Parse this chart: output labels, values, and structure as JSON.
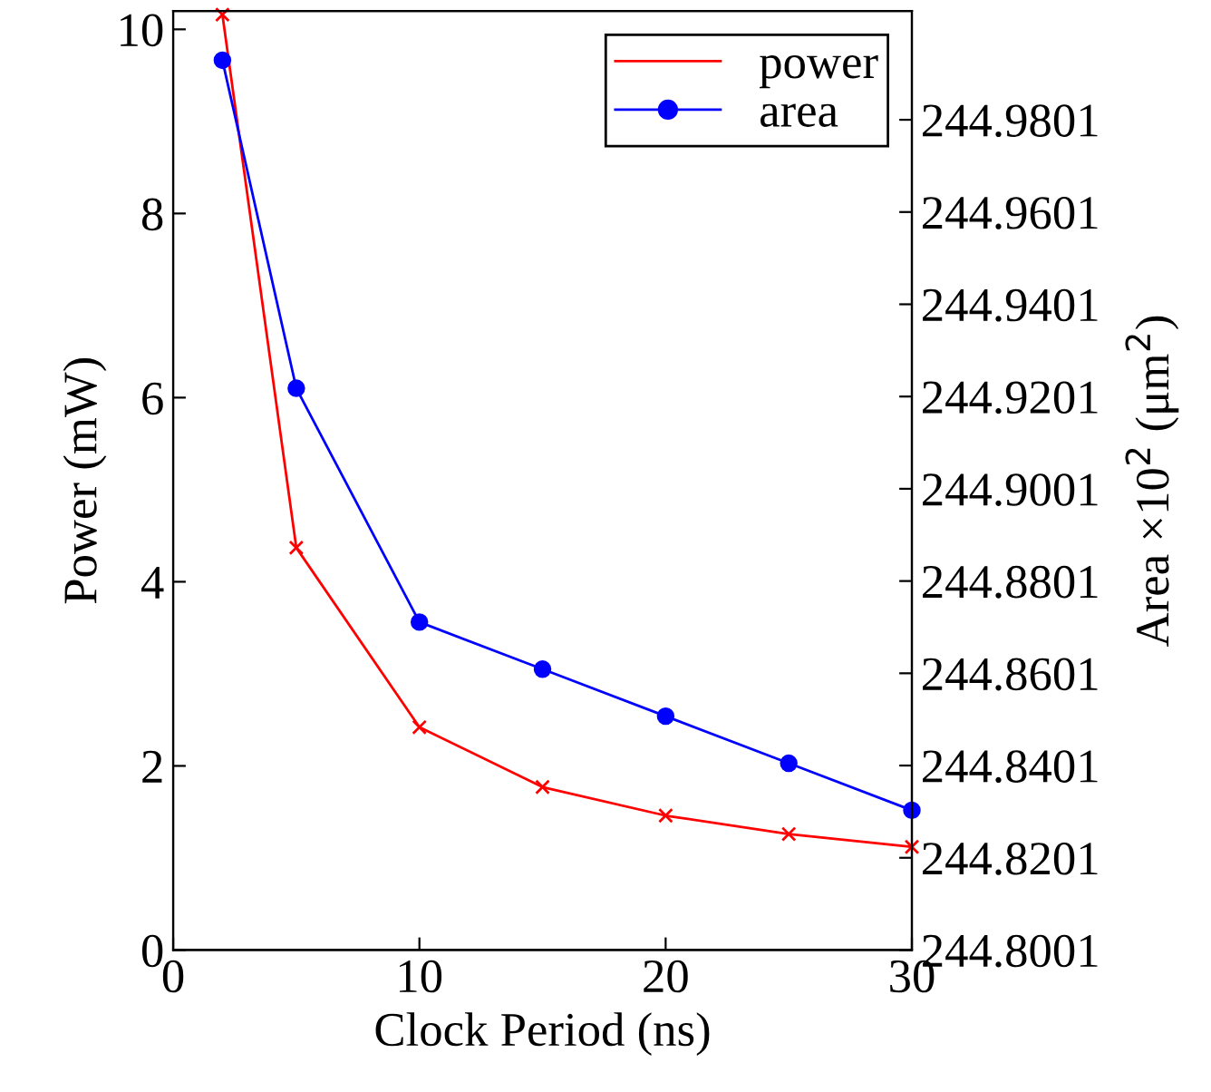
{
  "chart_data": {
    "type": "line",
    "xlabel": "Clock Period (ns)",
    "ylabel": "Power (mW)",
    "y2label": "Area ×10$^{2}$ (μm$^{2}$)",
    "xlim": [
      0,
      30
    ],
    "xticks": [
      0,
      10,
      20,
      30
    ],
    "ylim": [
      0,
      10.2
    ],
    "yticks": [
      0,
      2,
      4,
      6,
      8,
      10
    ],
    "y2lim": [
      244.8001,
      245.0037
    ],
    "y2ticks": [
      244.8001,
      244.8201,
      244.8401,
      244.8601,
      244.8801,
      244.9001,
      244.9201,
      244.9401,
      244.9601,
      244.9801
    ],
    "legend": "top right",
    "grid": false,
    "series": [
      {
        "name": "power",
        "color": "#ff0000",
        "marker": "cross",
        "x": [
          2,
          5,
          10,
          15,
          20,
          25,
          30
        ],
        "values": [
          10.16,
          4.37,
          2.42,
          1.77,
          1.46,
          1.26,
          1.12
        ]
      },
      {
        "name": "area",
        "color": "#0000ff",
        "marker": "circle",
        "axis": "y2",
        "x": [
          2,
          5,
          10,
          15,
          20,
          25,
          30
        ],
        "values": [
          244.993,
          244.9219,
          244.8712,
          244.861,
          244.8508,
          244.8406,
          244.8304
        ]
      }
    ]
  }
}
